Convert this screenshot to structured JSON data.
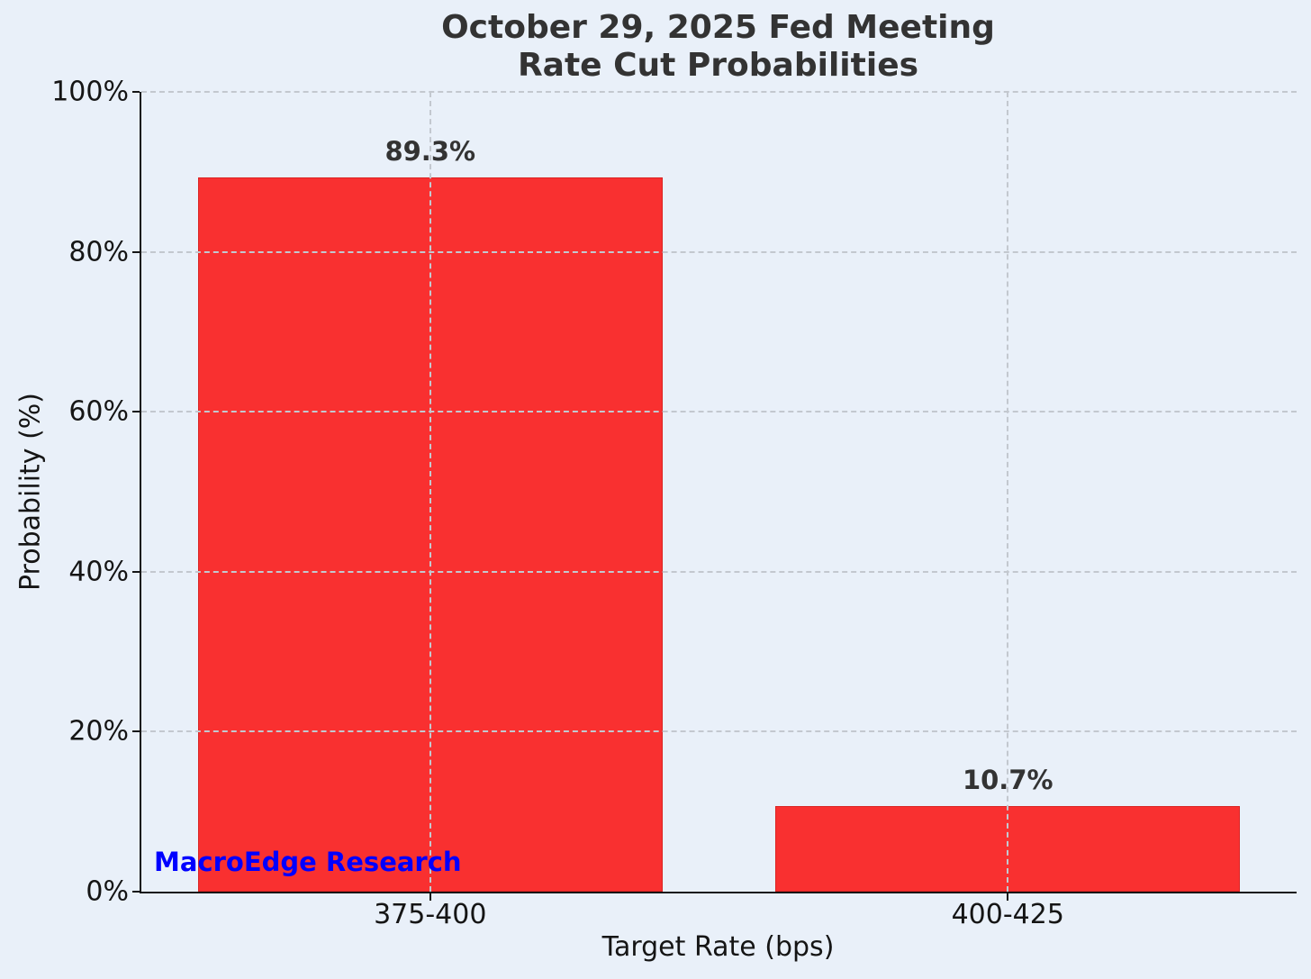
{
  "chart_data": {
    "type": "bar",
    "title_lines": [
      "October 29, 2025 Fed Meeting",
      "Rate Cut Probabilities"
    ],
    "categories": [
      "375-400",
      "400-425"
    ],
    "values": [
      89.3,
      10.7
    ],
    "value_labels": [
      "89.3%",
      "10.7%"
    ],
    "xlabel": "Target Rate (bps)",
    "ylabel": "Probability (%)",
    "ylim": [
      0,
      100
    ],
    "yticks": [
      0,
      20,
      40,
      60,
      80,
      100
    ],
    "ytick_suffix": "%",
    "grid": true,
    "legend": "none",
    "watermark": {
      "text": "MacroEdge Research",
      "color": "#0000ff"
    },
    "colors": {
      "bar": "#f93030",
      "background": "#e9f0f9",
      "title_text": "#333333",
      "axis_text": "#151515",
      "gridline": "#c3c8cf"
    }
  }
}
